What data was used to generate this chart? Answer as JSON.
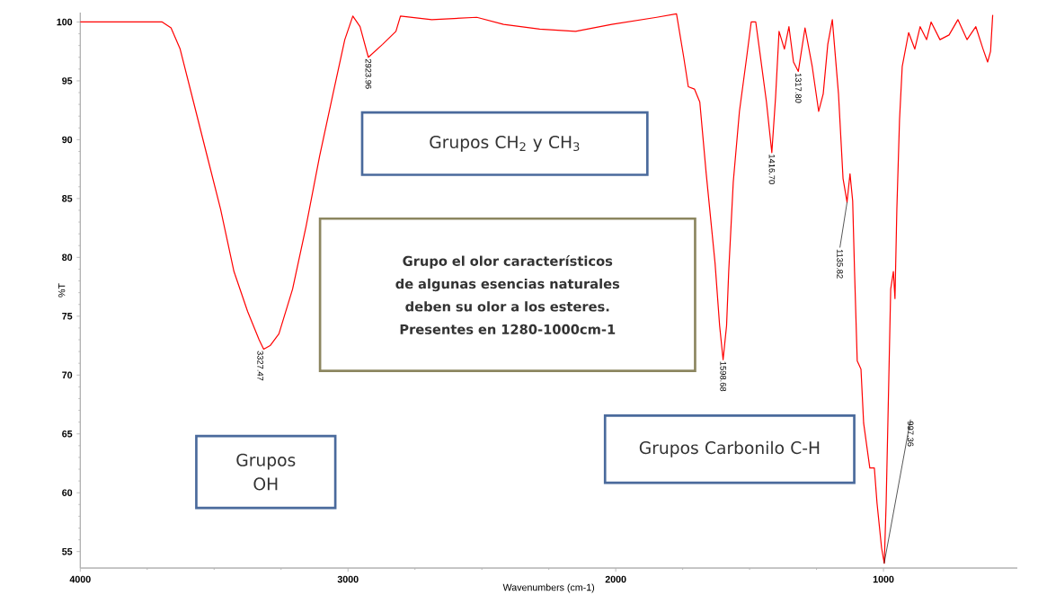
{
  "chart_data": {
    "type": "line",
    "xlabel": "Wavenumbers (cm-1)",
    "ylabel": "%T",
    "xlim": [
      4000,
      500
    ],
    "ylim": [
      53.6,
      100.8
    ],
    "xticks": [
      4000,
      3000,
      2000,
      1000
    ],
    "yticks": [
      55,
      60,
      65,
      70,
      75,
      80,
      85,
      90,
      95,
      100
    ],
    "grid": false,
    "marker": "none",
    "line_style": "solid",
    "series": [
      {
        "color": "#ff0000",
        "x": [
          4000,
          3800,
          3694,
          3661,
          3627,
          3577,
          3526,
          3476,
          3426,
          3375,
          3332,
          3315,
          3291,
          3258,
          3207,
          3157,
          3106,
          3056,
          3012,
          2982,
          2955,
          2924,
          2871,
          2821,
          2804,
          2687,
          2519,
          2419,
          2284,
          2150,
          2015,
          1847,
          1773,
          1746,
          1729,
          1706,
          1686,
          1662,
          1629,
          1612,
          1599,
          1586,
          1578,
          1561,
          1538,
          1511,
          1494,
          1477,
          1461,
          1437,
          1417,
          1403,
          1390,
          1370,
          1353,
          1336,
          1318,
          1293,
          1266,
          1242,
          1225,
          1208,
          1191,
          1168,
          1151,
          1136,
          1125,
          1115,
          1108,
          1098,
          1084,
          1074,
          1051,
          1034,
          1024,
          1007,
          997,
          990,
          980,
          973,
          963,
          957,
          950,
          940,
          930,
          906,
          883,
          863,
          839,
          822,
          789,
          755,
          722,
          688,
          655,
          628,
          611,
          600,
          592
        ],
        "values": [
          100,
          100,
          100,
          99.5,
          97.7,
          93.2,
          88.6,
          84.1,
          78.8,
          75.4,
          73,
          72.2,
          72.5,
          73.5,
          77.3,
          82.6,
          88.6,
          93.9,
          98.5,
          100.5,
          99.6,
          97,
          98.1,
          99.2,
          100.5,
          100.2,
          100.4,
          99.8,
          99.4,
          99.2,
          99.8,
          100.4,
          100.7,
          97,
          94.5,
          94.3,
          93.2,
          87.1,
          79.5,
          74.2,
          71.3,
          74.2,
          78.8,
          86.4,
          92.4,
          97,
          100,
          100,
          97.3,
          93.2,
          88.9,
          93.6,
          99.2,
          97.7,
          99.6,
          96.6,
          95.8,
          99.5,
          96.2,
          92.4,
          93.9,
          98.1,
          100.2,
          93.9,
          86.7,
          84.7,
          87.1,
          84.8,
          78.8,
          71.2,
          70.5,
          65.9,
          62.1,
          62.1,
          59.1,
          55.3,
          54,
          59.1,
          69.7,
          77.3,
          78.8,
          76.5,
          84.1,
          91.7,
          96.2,
          99.1,
          97.7,
          99.6,
          98.5,
          100,
          98.5,
          98.9,
          100.2,
          98.5,
          99.6,
          97.7,
          96.6,
          97.5,
          100.6
        ]
      }
    ],
    "annotations": [
      {
        "text": "3327.47",
        "x": 3327.47,
        "y": 72.2
      },
      {
        "text": "2923.96",
        "x": 2923.96,
        "y": 97
      },
      {
        "text": "1598.68",
        "x": 1598.68,
        "y": 71.3
      },
      {
        "text": "1416.70",
        "x": 1416.7,
        "y": 88.9
      },
      {
        "text": "1317.80",
        "x": 1317.8,
        "y": 95.8
      },
      {
        "text": "1135.82",
        "x": 1135.82,
        "y": 84.7
      },
      {
        "text": "997.36",
        "x": 997.36,
        "y": 54
      },
      "Grupos OH",
      "Grupos CH$_{2}$ y CH$_{3}$",
      "**Grupo el olor característicos de algunas esencias naturales deben su olor a los esteres. Presentes en 1280-1000cm-1**",
      "Grupos Carbonilo C-H"
    ]
  }
}
